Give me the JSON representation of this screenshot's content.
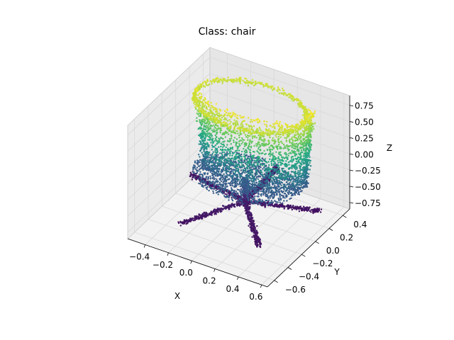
{
  "chart_data": {
    "type": "scatter",
    "projection": "3d",
    "title": "Class: chair",
    "xlabel": "X",
    "ylabel": "Y",
    "zlabel": "Z",
    "xlim": [
      -0.55,
      0.65
    ],
    "ylim": [
      -0.7,
      0.5
    ],
    "zlim": [
      -0.85,
      0.9
    ],
    "xticks": [
      "−0.4",
      "−0.2",
      "0.0",
      "0.2",
      "0.4",
      "0.6"
    ],
    "yticks": [
      "−0.6",
      "−0.4",
      "−0.2",
      "0.0",
      "0.2",
      "0.4"
    ],
    "zticks": [
      "−0.75",
      "−0.50",
      "−0.25",
      "0.00",
      "0.25",
      "0.50",
      "0.75"
    ],
    "xtick_values": [
      -0.4,
      -0.2,
      0.0,
      0.2,
      0.4,
      0.6
    ],
    "ytick_values": [
      -0.6,
      -0.4,
      -0.2,
      0.0,
      0.2,
      0.4
    ],
    "ztick_values": [
      -0.75,
      -0.5,
      -0.25,
      0.0,
      0.25,
      0.5,
      0.75
    ],
    "colormap": "viridis",
    "colormap_stops": [
      "#440154",
      "#414487",
      "#2a788e",
      "#22a884",
      "#7ad151",
      "#fde725"
    ],
    "grid": true,
    "pane_color": "#f2f2f2",
    "grid_color": "#d9d9d9",
    "marker_color_by": "z"
  }
}
